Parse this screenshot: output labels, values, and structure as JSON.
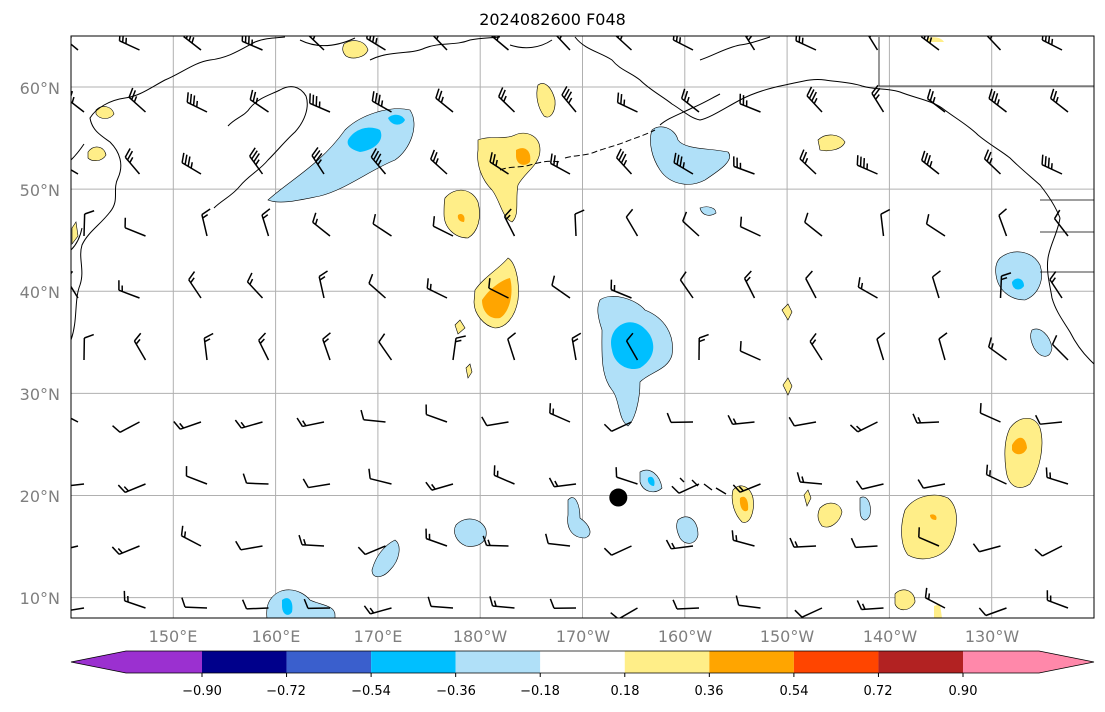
{
  "title": "2024082600 F048",
  "map": {
    "projection": "PlateCarree",
    "lon_range": [
      140,
      240
    ],
    "lat_range": [
      8,
      65
    ],
    "latitude_labels": [
      "10°N",
      "20°N",
      "30°N",
      "40°N",
      "50°N",
      "60°N"
    ],
    "longitude_labels": [
      "150°E",
      "160°E",
      "170°E",
      "180°W",
      "170°W",
      "160°W",
      "150°W",
      "140°W",
      "130°W"
    ],
    "gridlines": true,
    "marker": {
      "lon": 193.5,
      "lat": 19.8,
      "color": "#000000"
    }
  },
  "colorbar": {
    "ticks": [
      "−0.90",
      "−0.72",
      "−0.54",
      "−0.36",
      "−0.18",
      "0.18",
      "0.36",
      "0.54",
      "0.72",
      "0.90"
    ],
    "colors": [
      "#9b30d0",
      "#00008b",
      "#3a5fcd",
      "#00bfff",
      "#b0e0f8",
      "#ffffff",
      "#ffee88",
      "#ffa500",
      "#ff4500",
      "#b22222",
      "#ff88aa"
    ],
    "extend": "both"
  },
  "colors": {
    "frame": "#000000",
    "grid": "#b0b0b0",
    "coast": "#000000",
    "barb": "#000000"
  }
}
